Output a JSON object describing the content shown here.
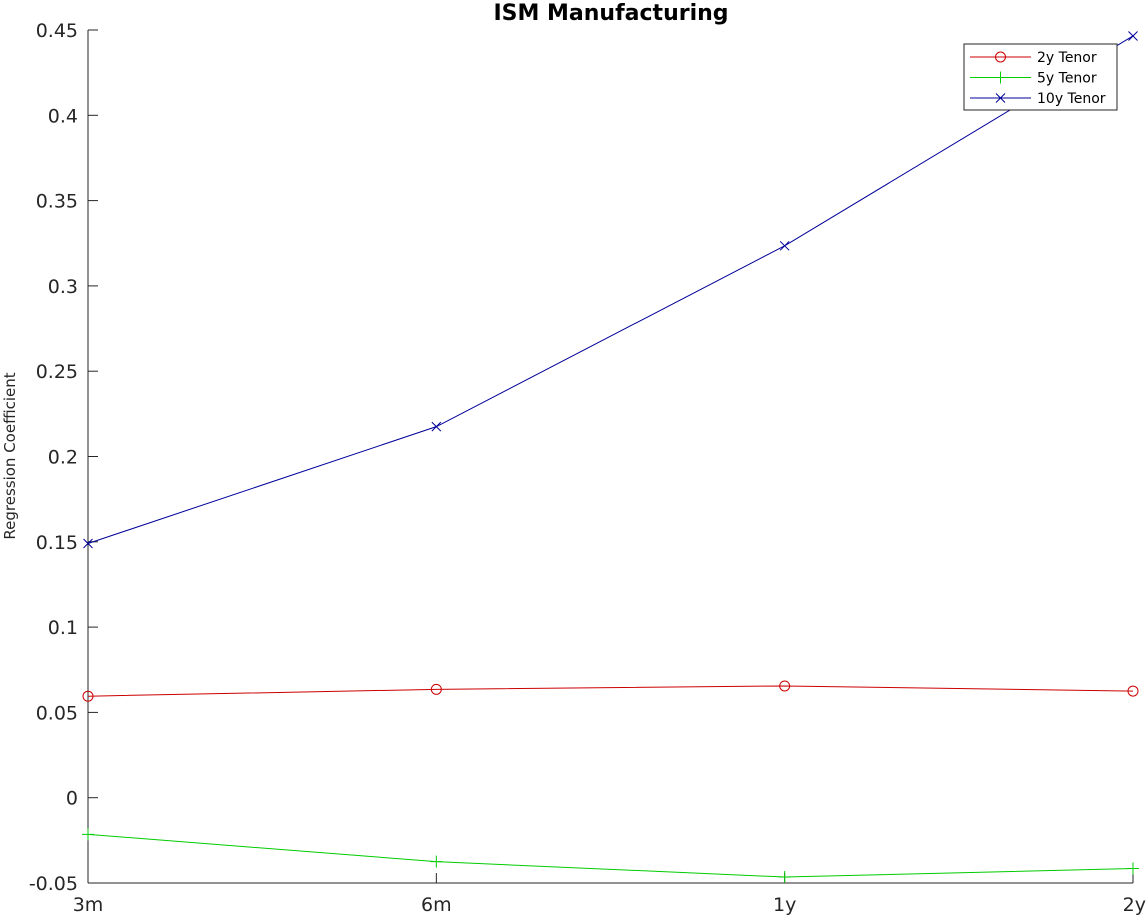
{
  "chart_data": {
    "type": "line",
    "title": "ISM Manufacturing",
    "xlabel": "",
    "ylabel": "Regression Coefficient",
    "categories": [
      "3m",
      "6m",
      "1y",
      "2y"
    ],
    "ylim": [
      -0.05,
      0.45
    ],
    "yticks": [
      "-0.05",
      "0",
      "0.05",
      "0.1",
      "0.15",
      "0.2",
      "0.25",
      "0.3",
      "0.35",
      "0.4",
      "0.45"
    ],
    "grid": false,
    "legend_position": "top-right",
    "series": [
      {
        "name": "2y Tenor",
        "color": "#cc0000",
        "marker": "circle",
        "values": [
          0.0595,
          0.0635,
          0.0655,
          0.0625
        ]
      },
      {
        "name": "5y Tenor",
        "color": "#00cc00",
        "marker": "plus",
        "values": [
          -0.0215,
          -0.0375,
          -0.0465,
          -0.0415
        ]
      },
      {
        "name": "10y Tenor",
        "color": "#000099",
        "marker": "x",
        "values": [
          0.149,
          0.2175,
          0.3235,
          0.4465
        ]
      }
    ]
  }
}
